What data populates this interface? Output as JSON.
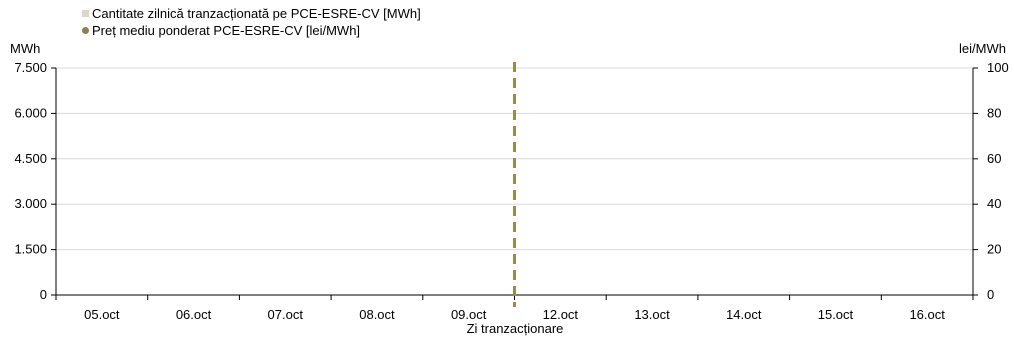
{
  "chart_data": {
    "type": "bar",
    "xlabel": "Zi tranzacționare",
    "categories": [
      "05.oct",
      "06.oct",
      "07.oct",
      "08.oct",
      "09.oct",
      "12.oct",
      "13.oct",
      "14.oct",
      "15.oct",
      "16.oct"
    ],
    "y_left": {
      "unit": "MWh",
      "ylim": [
        0,
        7500
      ],
      "ticks": [
        "0",
        "1.500",
        "3.000",
        "4.500",
        "6.000",
        "7.500"
      ],
      "tick_values": [
        0,
        1500,
        3000,
        4500,
        6000,
        7500
      ]
    },
    "y_right": {
      "unit": "lei/MWh",
      "ylim": [
        0,
        100
      ],
      "ticks": [
        "0",
        "20",
        "40",
        "60",
        "80",
        "100"
      ],
      "tick_values": [
        0,
        20,
        40,
        60,
        80,
        100
      ]
    },
    "series": [
      {
        "name": "Cantitate zilnică tranzacționată pe PCE-ESRE-CV [MWh]",
        "kind": "bar",
        "axis": "left",
        "color": "#d9d7cb",
        "values": [
          0,
          0,
          0,
          0,
          0,
          0,
          0,
          0,
          0,
          0
        ]
      },
      {
        "name": "Preț mediu ponderat PCE-ESRE-CV [lei/MWh]",
        "kind": "line",
        "axis": "right",
        "color": "#8c8052",
        "values": [
          null,
          null,
          null,
          null,
          null,
          null,
          null,
          null,
          null,
          null
        ]
      }
    ],
    "separator": {
      "after_category": "09.oct",
      "style": "dashed",
      "color": "#9c8a4a"
    },
    "grid": true,
    "legend_position": "top-left"
  }
}
